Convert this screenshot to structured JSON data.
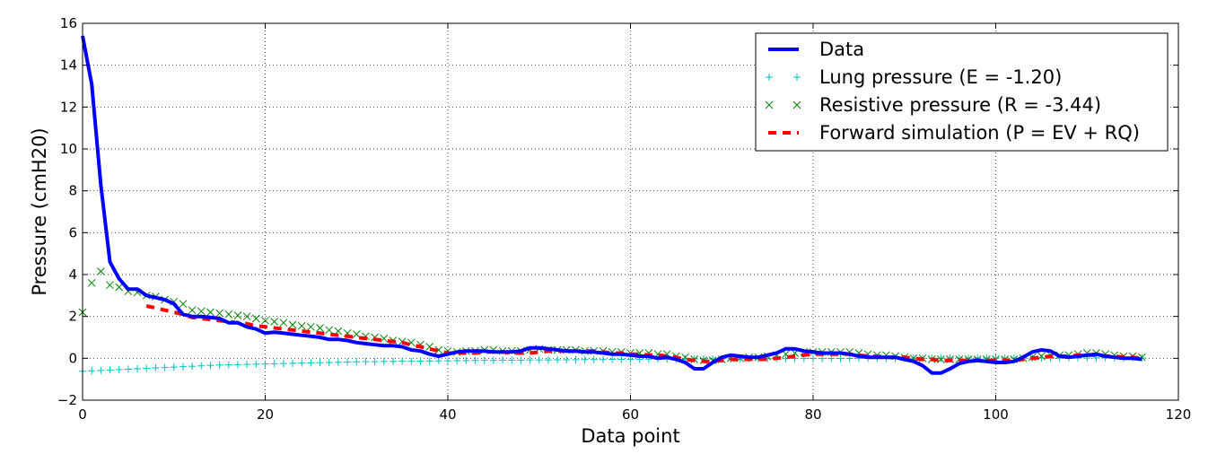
{
  "chart_data": {
    "type": "line",
    "xlabel": "Data point",
    "ylabel": "Pressure (cmH20)",
    "xlim": [
      0,
      120
    ],
    "ylim": [
      -2,
      16
    ],
    "xticks": [
      0,
      20,
      40,
      60,
      80,
      100,
      120
    ],
    "yticks": [
      -2,
      0,
      2,
      4,
      6,
      8,
      10,
      12,
      14,
      16
    ],
    "xtick_labels": [
      "0",
      "20",
      "40",
      "60",
      "80",
      "100",
      "120"
    ],
    "ytick_labels": [
      "−2",
      "0",
      "2",
      "4",
      "6",
      "8",
      "10",
      "12",
      "14",
      "16"
    ],
    "grid": true,
    "legend_position": "top-right",
    "series": [
      {
        "name": "Data",
        "style": "line",
        "color": "#0000ff",
        "x": [
          0,
          1,
          2,
          3,
          4,
          5,
          6,
          7,
          8,
          9,
          10,
          11,
          12,
          13,
          14,
          15,
          16,
          17,
          18,
          19,
          20,
          21,
          22,
          23,
          24,
          25,
          26,
          27,
          28,
          29,
          30,
          31,
          32,
          33,
          34,
          35,
          36,
          37,
          38,
          39,
          40,
          41,
          42,
          43,
          44,
          45,
          46,
          47,
          48,
          49,
          50,
          51,
          52,
          53,
          54,
          55,
          56,
          57,
          58,
          59,
          60,
          61,
          62,
          63,
          64,
          65,
          66,
          67,
          68,
          69,
          70,
          71,
          72,
          73,
          74,
          75,
          76,
          77,
          78,
          79,
          80,
          81,
          82,
          83,
          84,
          85,
          86,
          87,
          88,
          89,
          90,
          91,
          92,
          93,
          94,
          95,
          96,
          97,
          98,
          99,
          100,
          101,
          102,
          103,
          104,
          105,
          106,
          107,
          108,
          109,
          110,
          111,
          112,
          113,
          114,
          115,
          116
        ],
        "y": [
          15.4,
          13.1,
          8.3,
          4.6,
          3.8,
          3.3,
          3.3,
          3.0,
          2.9,
          2.8,
          2.6,
          2.1,
          2.0,
          2.0,
          1.95,
          1.9,
          1.7,
          1.7,
          1.5,
          1.4,
          1.2,
          1.25,
          1.2,
          1.15,
          1.1,
          1.05,
          1.0,
          0.9,
          0.9,
          0.85,
          0.75,
          0.7,
          0.65,
          0.6,
          0.6,
          0.55,
          0.4,
          0.35,
          0.2,
          0.1,
          0.2,
          0.3,
          0.35,
          0.35,
          0.35,
          0.3,
          0.3,
          0.3,
          0.35,
          0.5,
          0.5,
          0.45,
          0.4,
          0.35,
          0.35,
          0.3,
          0.3,
          0.25,
          0.2,
          0.2,
          0.15,
          0.1,
          0.1,
          0.0,
          0.05,
          -0.05,
          -0.2,
          -0.5,
          -0.5,
          -0.2,
          0.05,
          0.15,
          0.1,
          0.05,
          0.05,
          0.15,
          0.25,
          0.45,
          0.45,
          0.35,
          0.3,
          0.25,
          0.25,
          0.25,
          0.2,
          0.1,
          0.05,
          0.05,
          0.05,
          0.05,
          -0.05,
          -0.15,
          -0.35,
          -0.7,
          -0.7,
          -0.5,
          -0.25,
          -0.15,
          -0.1,
          -0.15,
          -0.2,
          -0.2,
          -0.15,
          0.05,
          0.3,
          0.4,
          0.35,
          0.1,
          0.05,
          0.1,
          0.15,
          0.2,
          0.1,
          0.05,
          0.0,
          0.0,
          -0.05
        ]
      },
      {
        "name": "Lung pressure (E = -1.20)",
        "style": "plus",
        "color": "#00bfbf",
        "x": [
          0,
          1,
          2,
          3,
          4,
          5,
          6,
          7,
          8,
          9,
          10,
          11,
          12,
          13,
          14,
          15,
          16,
          17,
          18,
          19,
          20,
          21,
          22,
          23,
          24,
          25,
          26,
          27,
          28,
          29,
          30,
          31,
          32,
          33,
          34,
          35,
          36,
          37,
          38,
          39,
          40,
          41,
          42,
          43,
          44,
          45,
          46,
          47,
          48,
          49,
          50,
          51,
          52,
          53,
          54,
          55,
          56,
          57,
          58,
          59,
          60,
          61,
          62,
          63,
          64,
          65,
          66,
          67,
          68,
          69,
          70,
          71,
          72,
          73,
          74,
          75,
          76,
          77,
          78,
          79,
          80,
          81,
          82,
          83,
          84,
          85,
          86,
          87,
          88,
          89,
          90,
          91,
          92,
          93,
          94,
          95,
          96,
          97,
          98,
          99,
          100,
          101,
          102,
          103,
          104,
          105,
          106,
          107,
          108,
          109,
          110,
          111,
          112,
          113,
          114,
          115,
          116
        ],
        "y": [
          -0.62,
          -0.6,
          -0.58,
          -0.56,
          -0.54,
          -0.52,
          -0.5,
          -0.48,
          -0.46,
          -0.44,
          -0.42,
          -0.4,
          -0.38,
          -0.36,
          -0.34,
          -0.32,
          -0.31,
          -0.3,
          -0.29,
          -0.28,
          -0.27,
          -0.26,
          -0.25,
          -0.24,
          -0.23,
          -0.22,
          -0.21,
          -0.2,
          -0.19,
          -0.18,
          -0.17,
          -0.16,
          -0.16,
          -0.15,
          -0.15,
          -0.14,
          -0.14,
          -0.13,
          -0.13,
          -0.12,
          -0.12,
          -0.11,
          -0.11,
          -0.1,
          -0.1,
          -0.1,
          -0.09,
          -0.09,
          -0.09,
          -0.08,
          -0.08,
          -0.08,
          -0.07,
          -0.07,
          -0.07,
          -0.06,
          -0.06,
          -0.06,
          -0.05,
          -0.05,
          -0.05,
          -0.05,
          -0.04,
          -0.04,
          -0.04,
          -0.04,
          -0.04,
          -0.03,
          -0.03,
          -0.03,
          -0.03,
          -0.03,
          -0.02,
          -0.02,
          -0.02,
          -0.02,
          -0.02,
          -0.02,
          -0.01,
          -0.01,
          -0.01,
          -0.01,
          -0.01,
          -0.01,
          -0.01,
          0.0,
          0.0,
          0.0,
          0.0,
          0.0,
          0.0,
          0.0,
          0.0,
          0.0,
          0.0,
          0.01,
          0.01,
          0.01,
          0.01,
          0.01,
          0.01,
          0.01,
          0.01,
          0.01,
          0.01,
          0.01,
          0.01,
          0.01,
          0.01,
          0.01,
          0.01,
          0.02,
          0.02,
          0.02,
          0.02,
          0.02,
          0.02
        ]
      },
      {
        "name": "Resistive pressure (R = -3.44)",
        "style": "cross",
        "color": "#008000",
        "x": [
          0,
          1,
          2,
          3,
          4,
          5,
          6,
          7,
          8,
          9,
          10,
          11,
          12,
          13,
          14,
          15,
          16,
          17,
          18,
          19,
          20,
          21,
          22,
          23,
          24,
          25,
          26,
          27,
          28,
          29,
          30,
          31,
          32,
          33,
          34,
          35,
          36,
          37,
          38,
          39,
          40,
          41,
          42,
          43,
          44,
          45,
          46,
          47,
          48,
          49,
          50,
          51,
          52,
          53,
          54,
          55,
          56,
          57,
          58,
          59,
          60,
          61,
          62,
          63,
          64,
          65,
          66,
          67,
          68,
          69,
          70,
          71,
          72,
          73,
          74,
          75,
          76,
          77,
          78,
          79,
          80,
          81,
          82,
          83,
          84,
          85,
          86,
          87,
          88,
          89,
          90,
          91,
          92,
          93,
          94,
          95,
          96,
          97,
          98,
          99,
          100,
          101,
          102,
          103,
          104,
          105,
          106,
          107,
          108,
          109,
          110,
          111,
          112,
          113,
          114,
          115,
          116
        ],
        "y": [
          2.2,
          3.6,
          4.15,
          3.5,
          3.4,
          3.2,
          3.15,
          3.0,
          2.95,
          2.8,
          2.7,
          2.6,
          2.3,
          2.25,
          2.2,
          2.15,
          2.1,
          2.05,
          2.0,
          1.9,
          1.8,
          1.75,
          1.7,
          1.6,
          1.55,
          1.5,
          1.45,
          1.35,
          1.3,
          1.2,
          1.15,
          1.05,
          1.0,
          0.95,
          0.85,
          0.8,
          0.75,
          0.65,
          0.55,
          0.4,
          0.35,
          0.3,
          0.35,
          0.35,
          0.4,
          0.4,
          0.35,
          0.35,
          0.35,
          0.4,
          0.45,
          0.4,
          0.4,
          0.4,
          0.4,
          0.35,
          0.35,
          0.35,
          0.3,
          0.3,
          0.25,
          0.25,
          0.25,
          0.2,
          0.2,
          0.1,
          0.05,
          -0.05,
          -0.1,
          -0.1,
          -0.05,
          0.0,
          0.0,
          0.05,
          0.05,
          0.1,
          0.15,
          0.2,
          0.25,
          0.3,
          0.3,
          0.3,
          0.3,
          0.3,
          0.3,
          0.25,
          0.2,
          0.15,
          0.15,
          0.1,
          0.05,
          0.0,
          0.0,
          -0.05,
          -0.05,
          -0.05,
          -0.05,
          -0.05,
          -0.05,
          -0.05,
          -0.05,
          -0.05,
          -0.05,
          0.0,
          0.05,
          0.1,
          0.15,
          0.15,
          0.15,
          0.2,
          0.25,
          0.25,
          0.2,
          0.15,
          0.1,
          0.1,
          0.05
        ]
      },
      {
        "name": "Forward simulation (P = EV + RQ)",
        "style": "dashed",
        "color": "#ff0000",
        "x": [
          7,
          8,
          9,
          10,
          11,
          12,
          13,
          14,
          15,
          16,
          17,
          18,
          19,
          20,
          21,
          22,
          23,
          24,
          25,
          26,
          27,
          28,
          29,
          30,
          31,
          32,
          33,
          34,
          35,
          36,
          37,
          38,
          39,
          40,
          41,
          42,
          43,
          44,
          45,
          46,
          47,
          48,
          49,
          50,
          51,
          52,
          53,
          54,
          55,
          56,
          57,
          58,
          59,
          60,
          61,
          62,
          63,
          64,
          65,
          66,
          67,
          68,
          69,
          70,
          71,
          72,
          73,
          74,
          75,
          76,
          77,
          78,
          79,
          80,
          81,
          82,
          83,
          84,
          85,
          86,
          87,
          88,
          89,
          90,
          91,
          92,
          93,
          94,
          95,
          96,
          97,
          98,
          99,
          100,
          101,
          102,
          103,
          104,
          105,
          106,
          107,
          108,
          109,
          110,
          111,
          112,
          113,
          114,
          115,
          116
        ],
        "y": [
          2.5,
          2.4,
          2.3,
          2.2,
          2.1,
          1.95,
          1.9,
          1.85,
          1.8,
          1.75,
          1.7,
          1.65,
          1.55,
          1.5,
          1.45,
          1.4,
          1.35,
          1.3,
          1.25,
          1.2,
          1.15,
          1.1,
          1.05,
          1.0,
          0.95,
          0.9,
          0.85,
          0.8,
          0.75,
          0.65,
          0.55,
          0.45,
          0.35,
          0.25,
          0.25,
          0.25,
          0.25,
          0.3,
          0.3,
          0.3,
          0.25,
          0.25,
          0.25,
          0.3,
          0.35,
          0.35,
          0.35,
          0.35,
          0.35,
          0.35,
          0.3,
          0.25,
          0.25,
          0.2,
          0.2,
          0.15,
          0.15,
          0.1,
          0.05,
          -0.05,
          -0.1,
          -0.15,
          -0.15,
          -0.1,
          -0.05,
          -0.05,
          -0.05,
          -0.05,
          -0.05,
          0.0,
          0.05,
          0.1,
          0.15,
          0.2,
          0.2,
          0.2,
          0.2,
          0.2,
          0.15,
          0.1,
          0.1,
          0.05,
          0.05,
          0.05,
          0.0,
          -0.05,
          -0.05,
          -0.1,
          -0.1,
          -0.1,
          -0.1,
          -0.1,
          -0.1,
          -0.1,
          -0.1,
          -0.1,
          -0.05,
          0.0,
          0.05,
          0.1,
          0.1,
          0.1,
          0.15,
          0.15,
          0.15,
          0.1,
          0.1,
          0.05,
          0.05,
          0.0
        ]
      }
    ]
  }
}
